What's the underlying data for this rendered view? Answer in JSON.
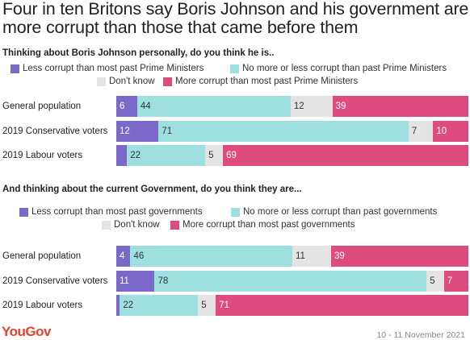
{
  "title": "Four in ten Britons say Boris Johnson and his government are more corrupt than those that came before them",
  "colors": {
    "less": "#7b69c9",
    "same": "#9ee0e0",
    "dontknow": "#e4e4e4",
    "more": "#de4b7e"
  },
  "chart_data": [
    {
      "type": "bar",
      "orientation": "horizontal",
      "stacked": true,
      "title": "Thinking about Boris Johnson personally, do you think he is..",
      "categories": [
        "General population",
        "2019 Conservative voters",
        "2019 Labour voters"
      ],
      "series": [
        {
          "name": "Less corrupt than most past Prime Ministers",
          "values": [
            6,
            12,
            3
          ]
        },
        {
          "name": "No more or less corrupt than past Prime Ministers",
          "values": [
            44,
            71,
            22
          ]
        },
        {
          "name": "Don't know",
          "values": [
            12,
            7,
            5
          ]
        },
        {
          "name": "More corrupt than most past Prime Ministers",
          "values": [
            39,
            10,
            69
          ]
        }
      ],
      "labels": [
        [
          "6",
          "44",
          "12",
          "39"
        ],
        [
          "12",
          "71",
          "7",
          "10"
        ],
        [
          "",
          "22",
          "5",
          "69"
        ]
      ],
      "xlim": [
        0,
        100
      ],
      "legend": "top"
    },
    {
      "type": "bar",
      "orientation": "horizontal",
      "stacked": true,
      "title": "And thinking about the current Government, do you think they are...",
      "categories": [
        "General population",
        "2019 Conservative voters",
        "2019 Labour voters"
      ],
      "series": [
        {
          "name": "Less corrupt than most past governments",
          "values": [
            4,
            11,
            1
          ]
        },
        {
          "name": "No more or less corrupt than past governments",
          "values": [
            46,
            78,
            22
          ]
        },
        {
          "name": "Don't know",
          "values": [
            11,
            5,
            5
          ]
        },
        {
          "name": "More corrupt than most past governments",
          "values": [
            39,
            7,
            71
          ]
        }
      ],
      "labels": [
        [
          "4",
          "46",
          "11",
          "39"
        ],
        [
          "11",
          "78",
          "5",
          "7"
        ],
        [
          "",
          "22",
          "5",
          "71"
        ]
      ],
      "xlim": [
        0,
        100
      ],
      "legend": "top"
    }
  ],
  "footer": {
    "logo": "YouGov",
    "date": "10 - 11 November 2021"
  }
}
